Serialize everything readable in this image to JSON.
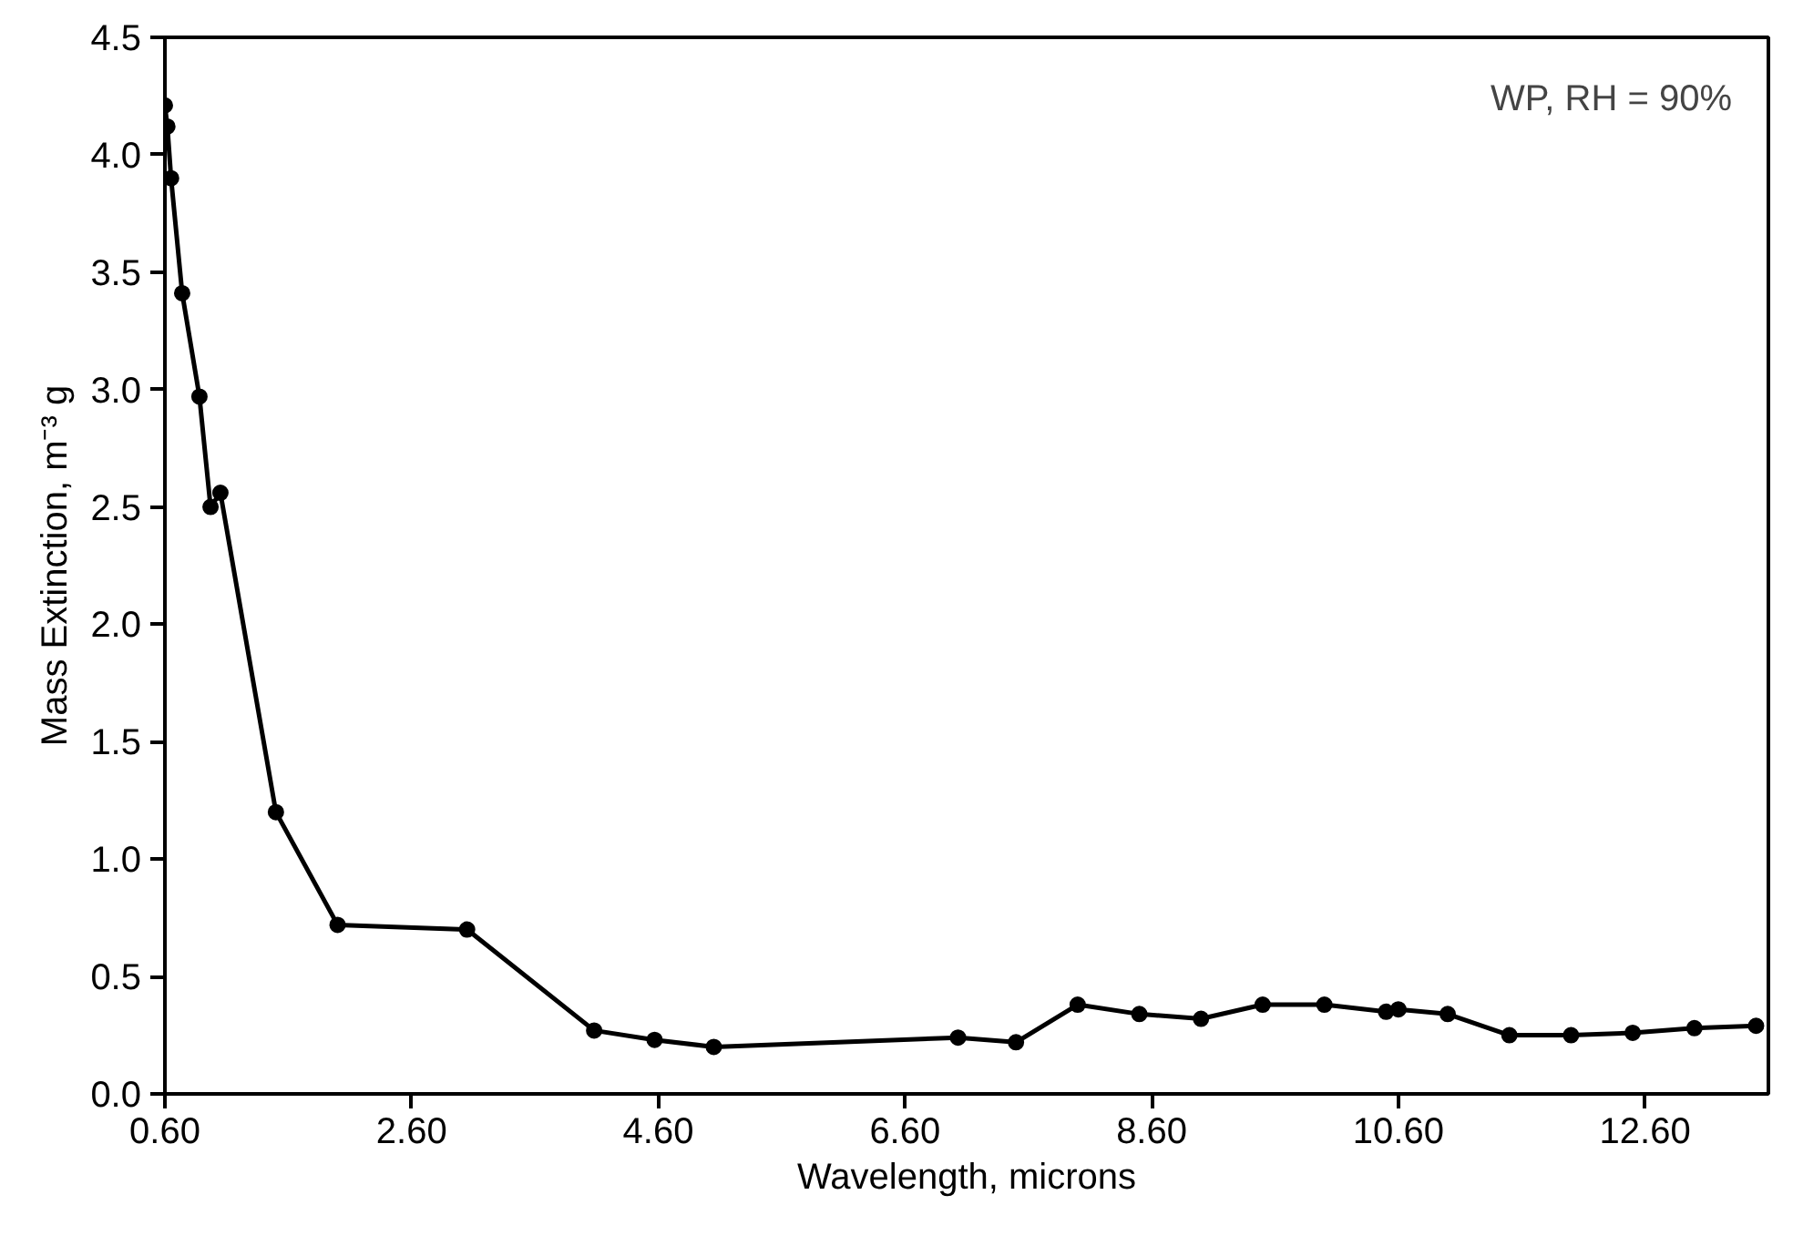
{
  "chart_data": {
    "type": "line",
    "xlabel": "Wavelength, microns",
    "ylabel": "Mass Extinction, m⁻³ g",
    "annotations": [
      "WP, RH = 90%"
    ],
    "marker": "circle",
    "line_style": "solid",
    "xlim": [
      0.6,
      13.6
    ],
    "ylim": [
      0,
      4.5
    ],
    "xticks": [
      {
        "value": 0.6,
        "label": "0.60"
      },
      {
        "value": 2.6,
        "label": "2.60"
      },
      {
        "value": 4.6,
        "label": "4.60"
      },
      {
        "value": 6.6,
        "label": "6.60"
      },
      {
        "value": 8.6,
        "label": "8.60"
      },
      {
        "value": 10.6,
        "label": "10.60"
      },
      {
        "value": 12.6,
        "label": "12.60"
      }
    ],
    "yticks": [
      {
        "value": 0,
        "label": "0.0"
      },
      0.5,
      {
        "value": 1,
        "label": "1.0"
      },
      1.5,
      {
        "value": 2,
        "label": "2.0"
      },
      2.5,
      {
        "value": 3,
        "label": "3.0"
      },
      3.5,
      {
        "value": 4,
        "label": "4.0"
      },
      4.5
    ],
    "series": [
      {
        "color": "#000000",
        "x": [
          0.6,
          0.62,
          0.65,
          0.74,
          0.88,
          0.97,
          1.05,
          1.5,
          2.0,
          3.05,
          4.08,
          4.57,
          5.05,
          7.03,
          7.5,
          8.0,
          8.5,
          9.0,
          9.5,
          10.0,
          10.5,
          10.6,
          11.0,
          11.5,
          12.0,
          12.5,
          13.0,
          13.5
        ],
        "values": [
          4.21,
          4.12,
          3.9,
          3.41,
          2.97,
          2.5,
          2.56,
          1.2,
          0.72,
          0.7,
          0.27,
          0.23,
          0.2,
          0.24,
          0.22,
          0.38,
          0.34,
          0.32,
          0.38,
          0.38,
          0.35,
          0.36,
          0.34,
          0.25,
          0.25,
          0.26,
          0.28,
          0.29
        ]
      }
    ]
  }
}
